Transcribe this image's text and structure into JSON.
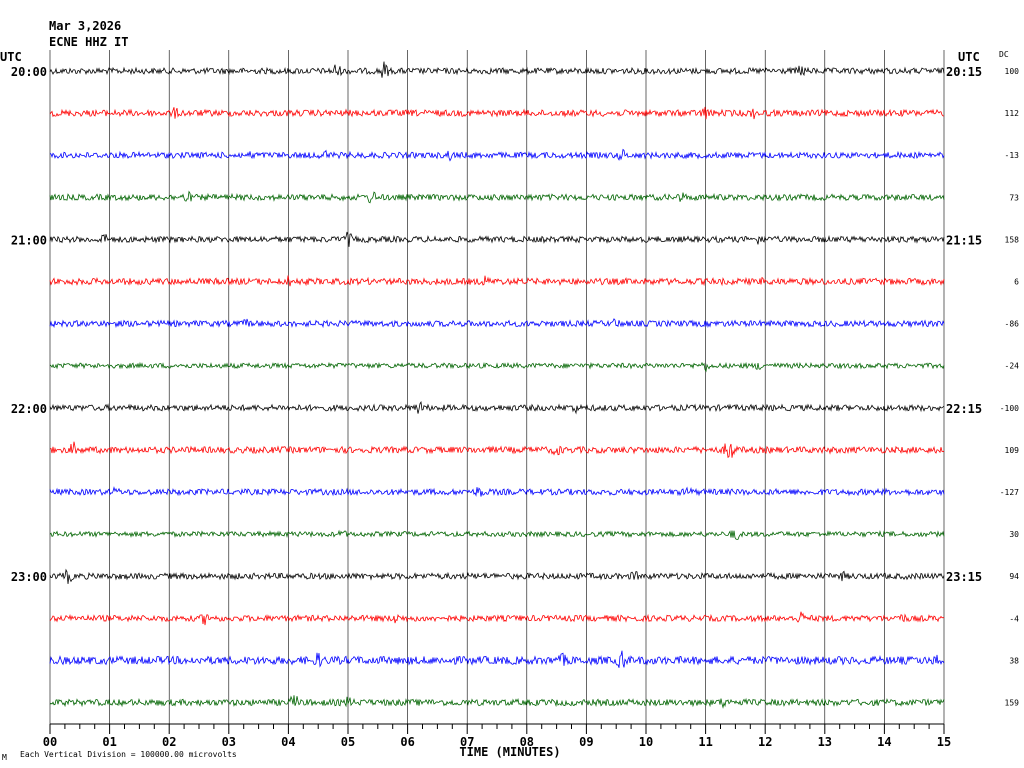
{
  "header": {
    "date": "Mar 3,2026",
    "station": "ECNE HHZ IT",
    "utc_left": "UTC",
    "utc_right": "UTC",
    "dc_label": "DC"
  },
  "footer": {
    "scale_note": "Each Vertical Division = 100000.00 microvolts",
    "corner_mark": "M"
  },
  "colors": {
    "trace_cycle": [
      "#000000",
      "#ff0000",
      "#0000ff",
      "#006400"
    ],
    "grid": "#000000"
  },
  "chart_data": {
    "type": "line",
    "xlabel": "TIME (MINUTES)",
    "xlim": [
      0,
      15
    ],
    "x_ticks": [
      "00",
      "01",
      "02",
      "03",
      "04",
      "05",
      "06",
      "07",
      "08",
      "09",
      "10",
      "11",
      "12",
      "13",
      "14",
      "15"
    ],
    "rows": [
      {
        "left_time": "20:00",
        "right_time": "20:15",
        "dc": "100",
        "amp": 3.0,
        "events": [
          [
            1.3,
            2
          ],
          [
            4.8,
            8
          ],
          [
            5.6,
            9
          ],
          [
            12.6,
            6
          ]
        ]
      },
      {
        "left_time": "",
        "right_time": "",
        "dc": "112",
        "amp": 3.2,
        "events": [
          [
            2.1,
            5
          ],
          [
            11.0,
            7
          ],
          [
            11.8,
            5
          ]
        ]
      },
      {
        "left_time": "",
        "right_time": "",
        "dc": "-13",
        "amp": 3.0,
        "events": [
          [
            3.4,
            4
          ],
          [
            4.6,
            6
          ],
          [
            6.7,
            5
          ],
          [
            9.6,
            6
          ]
        ]
      },
      {
        "left_time": "",
        "right_time": "",
        "dc": "73",
        "amp": 3.0,
        "events": [
          [
            2.3,
            6
          ],
          [
            5.4,
            7
          ],
          [
            10.6,
            5
          ]
        ]
      },
      {
        "left_time": "21:00",
        "right_time": "21:15",
        "dc": "158",
        "amp": 3.0,
        "events": [
          [
            0.9,
            6
          ],
          [
            5.0,
            7
          ],
          [
            11.9,
            5
          ]
        ]
      },
      {
        "left_time": "",
        "right_time": "",
        "dc": "6",
        "amp": 3.2,
        "events": [
          [
            4.0,
            5
          ],
          [
            7.3,
            5
          ],
          [
            12.0,
            5
          ]
        ]
      },
      {
        "left_time": "",
        "right_time": "",
        "dc": "-86",
        "amp": 3.0,
        "events": [
          [
            3.3,
            4
          ],
          [
            9.5,
            5
          ]
        ]
      },
      {
        "left_time": "",
        "right_time": "",
        "dc": "-24",
        "amp": 2.5,
        "events": [
          [
            11.0,
            5
          ],
          [
            11.9,
            4
          ]
        ]
      },
      {
        "left_time": "22:00",
        "right_time": "22:15",
        "dc": "-100",
        "amp": 3.0,
        "events": [
          [
            6.2,
            7
          ],
          [
            8.8,
            5
          ]
        ]
      },
      {
        "left_time": "",
        "right_time": "",
        "dc": "109",
        "amp": 3.2,
        "events": [
          [
            0.4,
            7
          ],
          [
            8.5,
            6
          ],
          [
            11.4,
            13
          ]
        ]
      },
      {
        "left_time": "",
        "right_time": "",
        "dc": "-127",
        "amp": 3.0,
        "events": [
          [
            1.1,
            4
          ],
          [
            7.2,
            6
          ],
          [
            10.7,
            5
          ]
        ]
      },
      {
        "left_time": "",
        "right_time": "",
        "dc": "30",
        "amp": 2.5,
        "events": [
          [
            4.9,
            4
          ],
          [
            11.5,
            7
          ]
        ]
      },
      {
        "left_time": "23:00",
        "right_time": "23:15",
        "dc": "94",
        "amp": 3.0,
        "events": [
          [
            0.3,
            7
          ],
          [
            9.8,
            5
          ],
          [
            13.3,
            4
          ]
        ]
      },
      {
        "left_time": "",
        "right_time": "",
        "dc": "-4",
        "amp": 3.0,
        "events": [
          [
            2.6,
            6
          ],
          [
            5.8,
            5
          ],
          [
            12.6,
            6
          ],
          [
            14.3,
            5
          ]
        ]
      },
      {
        "left_time": "",
        "right_time": "",
        "dc": "38",
        "amp": 4.0,
        "events": [
          [
            4.5,
            7
          ],
          [
            8.6,
            6
          ],
          [
            9.6,
            10
          ],
          [
            14.9,
            6
          ]
        ]
      },
      {
        "left_time": "",
        "right_time": "",
        "dc": "159",
        "amp": 3.2,
        "events": [
          [
            4.1,
            8
          ],
          [
            5.0,
            5
          ],
          [
            11.3,
            5
          ]
        ]
      }
    ]
  }
}
